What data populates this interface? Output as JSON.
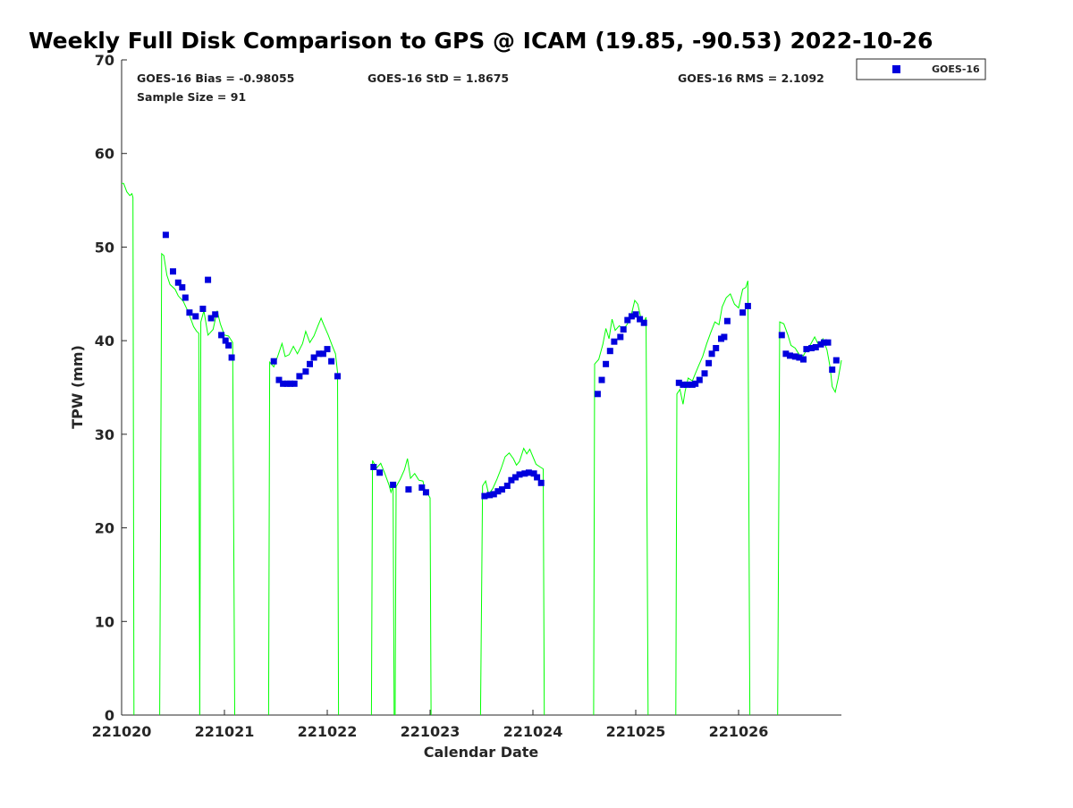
{
  "chart_data": {
    "type": "scatter",
    "title": "Weekly Full Disk Comparison to GPS @ ICAM (19.85, -90.53) 2022-10-26",
    "xlabel": "Calendar Date",
    "ylabel": "TPW (mm)",
    "xlim": [
      0,
      7
    ],
    "ylim": [
      0,
      70
    ],
    "x_ticks": [
      0,
      1,
      2,
      3,
      4,
      5,
      6
    ],
    "x_tick_labels": [
      "221020",
      "221021",
      "221022",
      "221023",
      "221024",
      "221025",
      "221026"
    ],
    "y_ticks": [
      0,
      10,
      20,
      30,
      40,
      50,
      60,
      70
    ],
    "grid": false,
    "legend": {
      "placement": "outside top-right",
      "entries": [
        "GOES-16"
      ]
    },
    "annotations": {
      "bias": "GOES-16 Bias = -0.98055",
      "std": "GOES-16 StD = 1.8675",
      "rms": "GOES-16 RMS = 2.1092",
      "sample": "Sample Size = 91"
    },
    "series": [
      {
        "name": "GOES-16",
        "role": "satellite",
        "marker": "square",
        "color": "#0000dd",
        "points": [
          [
            0.43,
            51.3
          ],
          [
            0.5,
            47.4
          ],
          [
            0.55,
            46.2
          ],
          [
            0.59,
            45.7
          ],
          [
            0.62,
            44.6
          ],
          [
            0.66,
            43.0
          ],
          [
            0.72,
            42.6
          ],
          [
            0.79,
            43.4
          ],
          [
            0.84,
            46.5
          ],
          [
            0.87,
            42.4
          ],
          [
            0.91,
            42.8
          ],
          [
            0.97,
            40.6
          ],
          [
            1.01,
            40.0
          ],
          [
            1.04,
            39.5
          ],
          [
            1.07,
            38.2
          ],
          [
            1.48,
            37.8
          ],
          [
            1.53,
            35.8
          ],
          [
            1.57,
            35.4
          ],
          [
            1.61,
            35.4
          ],
          [
            1.64,
            35.4
          ],
          [
            1.68,
            35.4
          ],
          [
            1.73,
            36.2
          ],
          [
            1.79,
            36.7
          ],
          [
            1.83,
            37.5
          ],
          [
            1.87,
            38.2
          ],
          [
            1.92,
            38.6
          ],
          [
            1.96,
            38.6
          ],
          [
            2.0,
            39.1
          ],
          [
            2.04,
            37.8
          ],
          [
            2.1,
            36.2
          ],
          [
            2.45,
            26.5
          ],
          [
            2.51,
            25.9
          ],
          [
            2.64,
            24.6
          ],
          [
            2.79,
            24.1
          ],
          [
            2.92,
            24.3
          ],
          [
            2.96,
            23.8
          ],
          [
            3.53,
            23.4
          ],
          [
            3.58,
            23.5
          ],
          [
            3.62,
            23.6
          ],
          [
            3.66,
            23.9
          ],
          [
            3.7,
            24.1
          ],
          [
            3.75,
            24.5
          ],
          [
            3.79,
            25.1
          ],
          [
            3.83,
            25.4
          ],
          [
            3.87,
            25.7
          ],
          [
            3.92,
            25.8
          ],
          [
            3.96,
            25.9
          ],
          [
            4.01,
            25.8
          ],
          [
            4.04,
            25.4
          ],
          [
            4.08,
            24.8
          ],
          [
            4.63,
            34.3
          ],
          [
            4.67,
            35.8
          ],
          [
            4.71,
            37.5
          ],
          [
            4.75,
            38.9
          ],
          [
            4.79,
            39.9
          ],
          [
            4.85,
            40.4
          ],
          [
            4.88,
            41.2
          ],
          [
            4.92,
            42.2
          ],
          [
            4.96,
            42.6
          ],
          [
            5.0,
            42.8
          ],
          [
            5.04,
            42.3
          ],
          [
            5.08,
            41.9
          ],
          [
            5.42,
            35.5
          ],
          [
            5.46,
            35.3
          ],
          [
            5.5,
            35.3
          ],
          [
            5.55,
            35.3
          ],
          [
            5.58,
            35.4
          ],
          [
            5.62,
            35.8
          ],
          [
            5.67,
            36.5
          ],
          [
            5.71,
            37.6
          ],
          [
            5.74,
            38.6
          ],
          [
            5.78,
            39.2
          ],
          [
            5.83,
            40.2
          ],
          [
            5.86,
            40.4
          ],
          [
            5.89,
            42.1
          ],
          [
            6.04,
            43.0
          ],
          [
            6.09,
            43.7
          ],
          [
            6.42,
            40.6
          ],
          [
            6.46,
            38.6
          ],
          [
            6.5,
            38.4
          ],
          [
            6.55,
            38.3
          ],
          [
            6.59,
            38.2
          ],
          [
            6.63,
            38.0
          ],
          [
            6.66,
            39.1
          ],
          [
            6.71,
            39.2
          ],
          [
            6.75,
            39.3
          ],
          [
            6.8,
            39.6
          ],
          [
            6.83,
            39.8
          ],
          [
            6.87,
            39.8
          ],
          [
            6.91,
            36.9
          ],
          [
            6.95,
            37.9
          ]
        ]
      },
      {
        "role": "gps",
        "color": "#00ff00",
        "segments": [
          [
            [
              0.0,
              56.8
            ],
            [
              0.02,
              56.8
            ],
            [
              0.05,
              55.9
            ],
            [
              0.08,
              55.5
            ],
            [
              0.1,
              55.7
            ],
            [
              0.11,
              55.3
            ],
            [
              0.12,
              0
            ]
          ],
          [
            [
              0.37,
              0
            ],
            [
              0.39,
              49.3
            ],
            [
              0.41,
              49.1
            ],
            [
              0.44,
              47.0
            ],
            [
              0.47,
              46.0
            ],
            [
              0.52,
              45.5
            ],
            [
              0.55,
              44.8
            ],
            [
              0.6,
              44.2
            ],
            [
              0.65,
              43.0
            ],
            [
              0.7,
              41.5
            ],
            [
              0.73,
              41.0
            ],
            [
              0.75,
              40.8
            ],
            [
              0.76,
              0
            ]
          ],
          [
            [
              0.76,
              0
            ],
            [
              0.77,
              42.0
            ],
            [
              0.8,
              43.2
            ],
            [
              0.84,
              40.6
            ],
            [
              0.89,
              41.2
            ],
            [
              0.93,
              43.2
            ],
            [
              0.96,
              41.8
            ],
            [
              1.0,
              40.6
            ],
            [
              1.04,
              40.5
            ],
            [
              1.08,
              39.8
            ],
            [
              1.1,
              0
            ]
          ],
          [
            [
              1.43,
              0
            ],
            [
              1.44,
              37.7
            ],
            [
              1.48,
              37.2
            ],
            [
              1.52,
              38.4
            ],
            [
              1.56,
              39.7
            ],
            [
              1.59,
              38.3
            ],
            [
              1.63,
              38.5
            ],
            [
              1.67,
              39.4
            ],
            [
              1.71,
              38.6
            ],
            [
              1.76,
              39.7
            ],
            [
              1.79,
              41.0
            ],
            [
              1.83,
              39.8
            ],
            [
              1.87,
              40.5
            ],
            [
              1.91,
              41.6
            ],
            [
              1.94,
              42.4
            ],
            [
              1.97,
              41.6
            ],
            [
              2.01,
              40.6
            ],
            [
              2.05,
              39.4
            ],
            [
              2.08,
              38.6
            ],
            [
              2.1,
              36.6
            ],
            [
              2.11,
              0
            ]
          ],
          [
            [
              2.43,
              0
            ],
            [
              2.44,
              27.2
            ],
            [
              2.48,
              26.4
            ],
            [
              2.52,
              26.9
            ],
            [
              2.56,
              25.8
            ],
            [
              2.6,
              24.6
            ],
            [
              2.62,
              23.8
            ],
            [
              2.64,
              24.5
            ],
            [
              2.65,
              0
            ]
          ],
          [
            [
              2.66,
              0
            ],
            [
              2.67,
              24.4
            ],
            [
              2.71,
              25.2
            ],
            [
              2.75,
              26.2
            ],
            [
              2.78,
              27.4
            ],
            [
              2.81,
              25.3
            ],
            [
              2.85,
              25.8
            ],
            [
              2.89,
              25.1
            ],
            [
              2.93,
              25.0
            ],
            [
              2.96,
              23.5
            ],
            [
              2.98,
              23.6
            ],
            [
              3.0,
              23.2
            ],
            [
              3.01,
              0
            ]
          ],
          [
            [
              3.49,
              0
            ],
            [
              3.51,
              24.5
            ],
            [
              3.54,
              25.0
            ],
            [
              3.57,
              23.6
            ],
            [
              3.61,
              24.2
            ],
            [
              3.65,
              25.2
            ],
            [
              3.69,
              26.3
            ],
            [
              3.73,
              27.6
            ],
            [
              3.77,
              28.0
            ],
            [
              3.81,
              27.4
            ],
            [
              3.84,
              26.7
            ],
            [
              3.87,
              27.1
            ],
            [
              3.91,
              28.5
            ],
            [
              3.94,
              27.9
            ],
            [
              3.97,
              28.4
            ],
            [
              4.0,
              27.6
            ],
            [
              4.03,
              26.8
            ],
            [
              4.07,
              26.5
            ],
            [
              4.1,
              26.3
            ],
            [
              4.11,
              0
            ]
          ],
          [
            [
              4.59,
              0
            ],
            [
              4.6,
              37.5
            ],
            [
              4.64,
              38.0
            ],
            [
              4.68,
              39.6
            ],
            [
              4.71,
              41.3
            ],
            [
              4.74,
              40.2
            ],
            [
              4.77,
              42.3
            ],
            [
              4.8,
              41.1
            ],
            [
              4.84,
              41.6
            ],
            [
              4.88,
              41.2
            ],
            [
              4.92,
              41.8
            ],
            [
              4.96,
              42.9
            ],
            [
              4.99,
              44.3
            ],
            [
              5.02,
              43.9
            ],
            [
              5.05,
              42.4
            ],
            [
              5.08,
              42.0
            ],
            [
              5.1,
              42.5
            ],
            [
              5.12,
              0
            ]
          ],
          [
            [
              5.39,
              0
            ],
            [
              5.4,
              34.3
            ],
            [
              5.43,
              34.8
            ],
            [
              5.46,
              33.2
            ],
            [
              5.48,
              34.6
            ],
            [
              5.51,
              36.0
            ],
            [
              5.55,
              35.7
            ],
            [
              5.58,
              36.5
            ],
            [
              5.61,
              37.3
            ],
            [
              5.65,
              38.3
            ],
            [
              5.69,
              39.7
            ],
            [
              5.73,
              40.9
            ],
            [
              5.77,
              42.0
            ],
            [
              5.81,
              41.7
            ],
            [
              5.84,
              43.6
            ],
            [
              5.88,
              44.6
            ],
            [
              5.92,
              45.0
            ],
            [
              5.96,
              43.9
            ],
            [
              6.0,
              43.5
            ],
            [
              6.04,
              45.5
            ],
            [
              6.07,
              45.7
            ],
            [
              6.09,
              46.4
            ],
            [
              6.11,
              0
            ]
          ],
          [
            [
              6.38,
              0
            ],
            [
              6.4,
              42.0
            ],
            [
              6.44,
              41.8
            ],
            [
              6.48,
              40.6
            ],
            [
              6.51,
              39.5
            ],
            [
              6.55,
              39.2
            ],
            [
              6.59,
              38.5
            ],
            [
              6.63,
              38.4
            ],
            [
              6.66,
              39.0
            ],
            [
              6.7,
              39.6
            ],
            [
              6.74,
              40.4
            ],
            [
              6.78,
              39.5
            ],
            [
              6.82,
              40.2
            ],
            [
              6.86,
              39.0
            ],
            [
              6.89,
              37.2
            ],
            [
              6.91,
              35.1
            ],
            [
              6.94,
              34.5
            ],
            [
              6.97,
              36.0
            ],
            [
              7.0,
              37.9
            ]
          ]
        ]
      }
    ]
  }
}
